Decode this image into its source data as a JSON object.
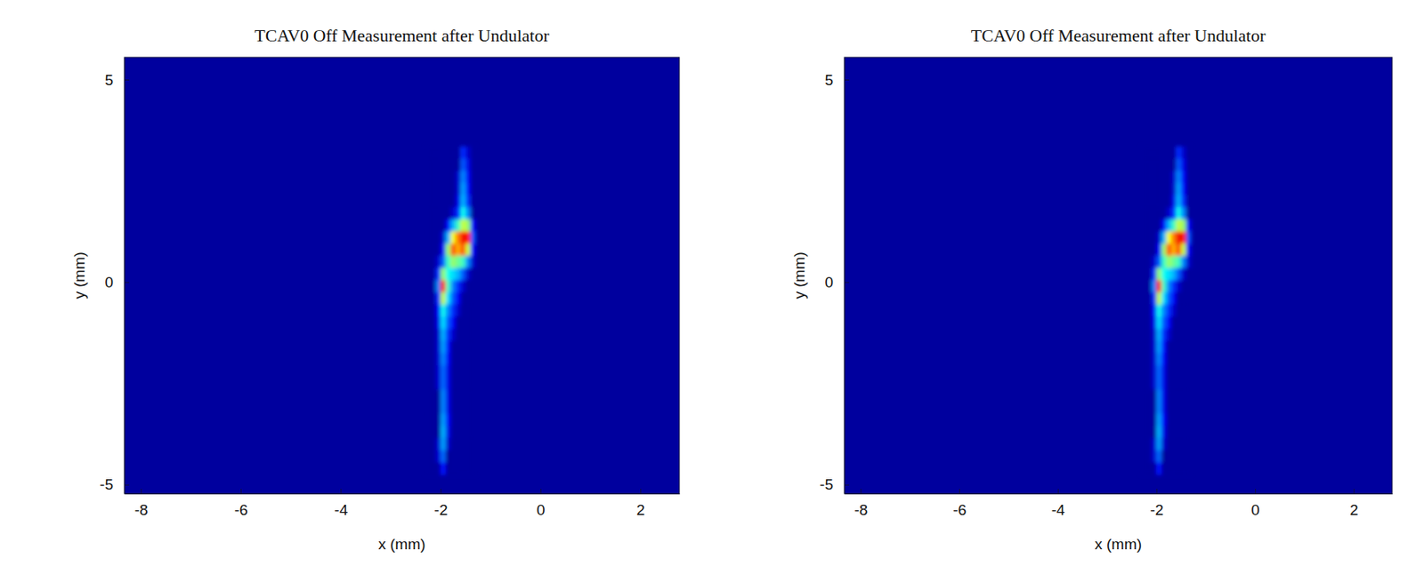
{
  "chart_data": [
    {
      "type": "heatmap",
      "title": "TCAV0 Off Measurement after Undulator",
      "xlabel": "x (mm)",
      "ylabel": "y (mm)",
      "xlim": [
        -8.33,
        2.78
      ],
      "ylim": [
        -5.22,
        5.55
      ],
      "xticks": [
        -8,
        -6,
        -4,
        -2,
        0,
        2
      ],
      "yticks": [
        -5,
        0,
        5
      ],
      "zlim": [
        0,
        100
      ],
      "x": [
        -2.25,
        -2.15,
        -2.05,
        -1.95,
        -1.85,
        -1.75,
        -1.65,
        -1.55,
        -1.45,
        -1.35
      ],
      "y": [
        3.2,
        2.9,
        2.6,
        2.3,
        2.0,
        1.7,
        1.4,
        1.1,
        0.8,
        0.5,
        0.2,
        -0.1,
        -0.4,
        -0.7,
        -1.0,
        -1.3,
        -1.6,
        -1.9,
        -2.2,
        -2.5,
        -2.8,
        -3.1,
        -3.4,
        -3.7,
        -4.0,
        -4.3,
        -4.6
      ],
      "values": [
        [
          0,
          0,
          0,
          0,
          0,
          0,
          0,
          15,
          5,
          0
        ],
        [
          0,
          0,
          0,
          0,
          0,
          0,
          0,
          20,
          8,
          0
        ],
        [
          0,
          0,
          0,
          0,
          0,
          0,
          5,
          25,
          10,
          0
        ],
        [
          0,
          0,
          0,
          0,
          0,
          0,
          5,
          28,
          12,
          0
        ],
        [
          0,
          0,
          0,
          0,
          0,
          0,
          8,
          30,
          15,
          0
        ],
        [
          0,
          0,
          0,
          0,
          0,
          5,
          15,
          40,
          25,
          0
        ],
        [
          0,
          0,
          0,
          0,
          10,
          30,
          45,
          60,
          55,
          10
        ],
        [
          0,
          0,
          0,
          5,
          30,
          65,
          80,
          95,
          90,
          20
        ],
        [
          0,
          0,
          0,
          10,
          55,
          85,
          75,
          85,
          60,
          10
        ],
        [
          0,
          0,
          5,
          20,
          45,
          55,
          50,
          45,
          25,
          5
        ],
        [
          0,
          0,
          15,
          55,
          40,
          35,
          30,
          20,
          5,
          0
        ],
        [
          0,
          0,
          25,
          90,
          45,
          25,
          15,
          5,
          0,
          0
        ],
        [
          0,
          0,
          15,
          60,
          35,
          20,
          10,
          0,
          0,
          0
        ],
        [
          0,
          0,
          10,
          40,
          25,
          15,
          5,
          0,
          0,
          0
        ],
        [
          0,
          0,
          8,
          35,
          20,
          10,
          0,
          0,
          0,
          0
        ],
        [
          0,
          0,
          5,
          30,
          15,
          5,
          0,
          0,
          0,
          0
        ],
        [
          0,
          0,
          5,
          28,
          12,
          0,
          0,
          0,
          0,
          0
        ],
        [
          0,
          0,
          5,
          25,
          10,
          0,
          0,
          0,
          0,
          0
        ],
        [
          0,
          0,
          5,
          22,
          8,
          0,
          0,
          0,
          0,
          0
        ],
        [
          0,
          0,
          5,
          22,
          8,
          0,
          0,
          0,
          0,
          0
        ],
        [
          0,
          0,
          0,
          25,
          8,
          0,
          0,
          0,
          0,
          0
        ],
        [
          0,
          0,
          0,
          25,
          8,
          0,
          0,
          0,
          0,
          0
        ],
        [
          0,
          0,
          0,
          28,
          10,
          0,
          0,
          0,
          0,
          0
        ],
        [
          0,
          0,
          0,
          30,
          8,
          0,
          0,
          0,
          0,
          0
        ],
        [
          0,
          0,
          5,
          28,
          5,
          0,
          0,
          0,
          0,
          0
        ],
        [
          0,
          0,
          5,
          22,
          0,
          0,
          0,
          0,
          0,
          0
        ],
        [
          0,
          0,
          0,
          12,
          0,
          0,
          0,
          0,
          0,
          0
        ]
      ]
    },
    {
      "type": "heatmap",
      "title": "TCAV0 Off Measurement after Undulator",
      "xlabel": "x (mm)",
      "ylabel": "y (mm)",
      "xlim": [
        -8.33,
        2.78
      ],
      "ylim": [
        -5.22,
        5.55
      ],
      "xticks": [
        -8,
        -6,
        -4,
        -2,
        0,
        2
      ],
      "yticks": [
        -5,
        0,
        5
      ],
      "zlim": [
        0,
        100
      ],
      "x": [
        -2.25,
        -2.15,
        -2.05,
        -1.95,
        -1.85,
        -1.75,
        -1.65,
        -1.55,
        -1.45,
        -1.35
      ],
      "y": [
        3.2,
        2.9,
        2.6,
        2.3,
        2.0,
        1.7,
        1.4,
        1.1,
        0.8,
        0.5,
        0.2,
        -0.1,
        -0.4,
        -0.7,
        -1.0,
        -1.3,
        -1.6,
        -1.9,
        -2.2,
        -2.5,
        -2.8,
        -3.1,
        -3.4,
        -3.7,
        -4.0,
        -4.3,
        -4.6
      ],
      "values": [
        [
          0,
          0,
          0,
          0,
          0,
          0,
          0,
          15,
          5,
          0
        ],
        [
          0,
          0,
          0,
          0,
          0,
          0,
          0,
          20,
          8,
          0
        ],
        [
          0,
          0,
          0,
          0,
          0,
          0,
          5,
          25,
          10,
          0
        ],
        [
          0,
          0,
          0,
          0,
          0,
          0,
          5,
          28,
          12,
          0
        ],
        [
          0,
          0,
          0,
          0,
          0,
          0,
          8,
          30,
          15,
          0
        ],
        [
          0,
          0,
          0,
          0,
          0,
          5,
          15,
          40,
          25,
          0
        ],
        [
          0,
          0,
          0,
          0,
          10,
          30,
          45,
          60,
          55,
          10
        ],
        [
          0,
          0,
          0,
          5,
          30,
          65,
          80,
          95,
          90,
          20
        ],
        [
          0,
          0,
          0,
          10,
          55,
          85,
          75,
          85,
          60,
          10
        ],
        [
          0,
          0,
          5,
          20,
          45,
          55,
          50,
          45,
          25,
          5
        ],
        [
          0,
          0,
          15,
          55,
          40,
          35,
          30,
          20,
          5,
          0
        ],
        [
          0,
          0,
          25,
          90,
          45,
          25,
          15,
          5,
          0,
          0
        ],
        [
          0,
          0,
          15,
          60,
          35,
          20,
          10,
          0,
          0,
          0
        ],
        [
          0,
          0,
          10,
          40,
          25,
          15,
          5,
          0,
          0,
          0
        ],
        [
          0,
          0,
          8,
          35,
          20,
          10,
          0,
          0,
          0,
          0
        ],
        [
          0,
          0,
          5,
          30,
          15,
          5,
          0,
          0,
          0,
          0
        ],
        [
          0,
          0,
          5,
          28,
          12,
          0,
          0,
          0,
          0,
          0
        ],
        [
          0,
          0,
          5,
          25,
          10,
          0,
          0,
          0,
          0,
          0
        ],
        [
          0,
          0,
          5,
          22,
          8,
          0,
          0,
          0,
          0,
          0
        ],
        [
          0,
          0,
          5,
          22,
          8,
          0,
          0,
          0,
          0,
          0
        ],
        [
          0,
          0,
          0,
          25,
          8,
          0,
          0,
          0,
          0,
          0
        ],
        [
          0,
          0,
          0,
          25,
          8,
          0,
          0,
          0,
          0,
          0
        ],
        [
          0,
          0,
          0,
          28,
          10,
          0,
          0,
          0,
          0,
          0
        ],
        [
          0,
          0,
          0,
          30,
          8,
          0,
          0,
          0,
          0,
          0
        ],
        [
          0,
          0,
          5,
          28,
          5,
          0,
          0,
          0,
          0,
          0
        ],
        [
          0,
          0,
          5,
          22,
          0,
          0,
          0,
          0,
          0,
          0
        ],
        [
          0,
          0,
          0,
          12,
          0,
          0,
          0,
          0,
          0,
          0
        ]
      ]
    }
  ]
}
